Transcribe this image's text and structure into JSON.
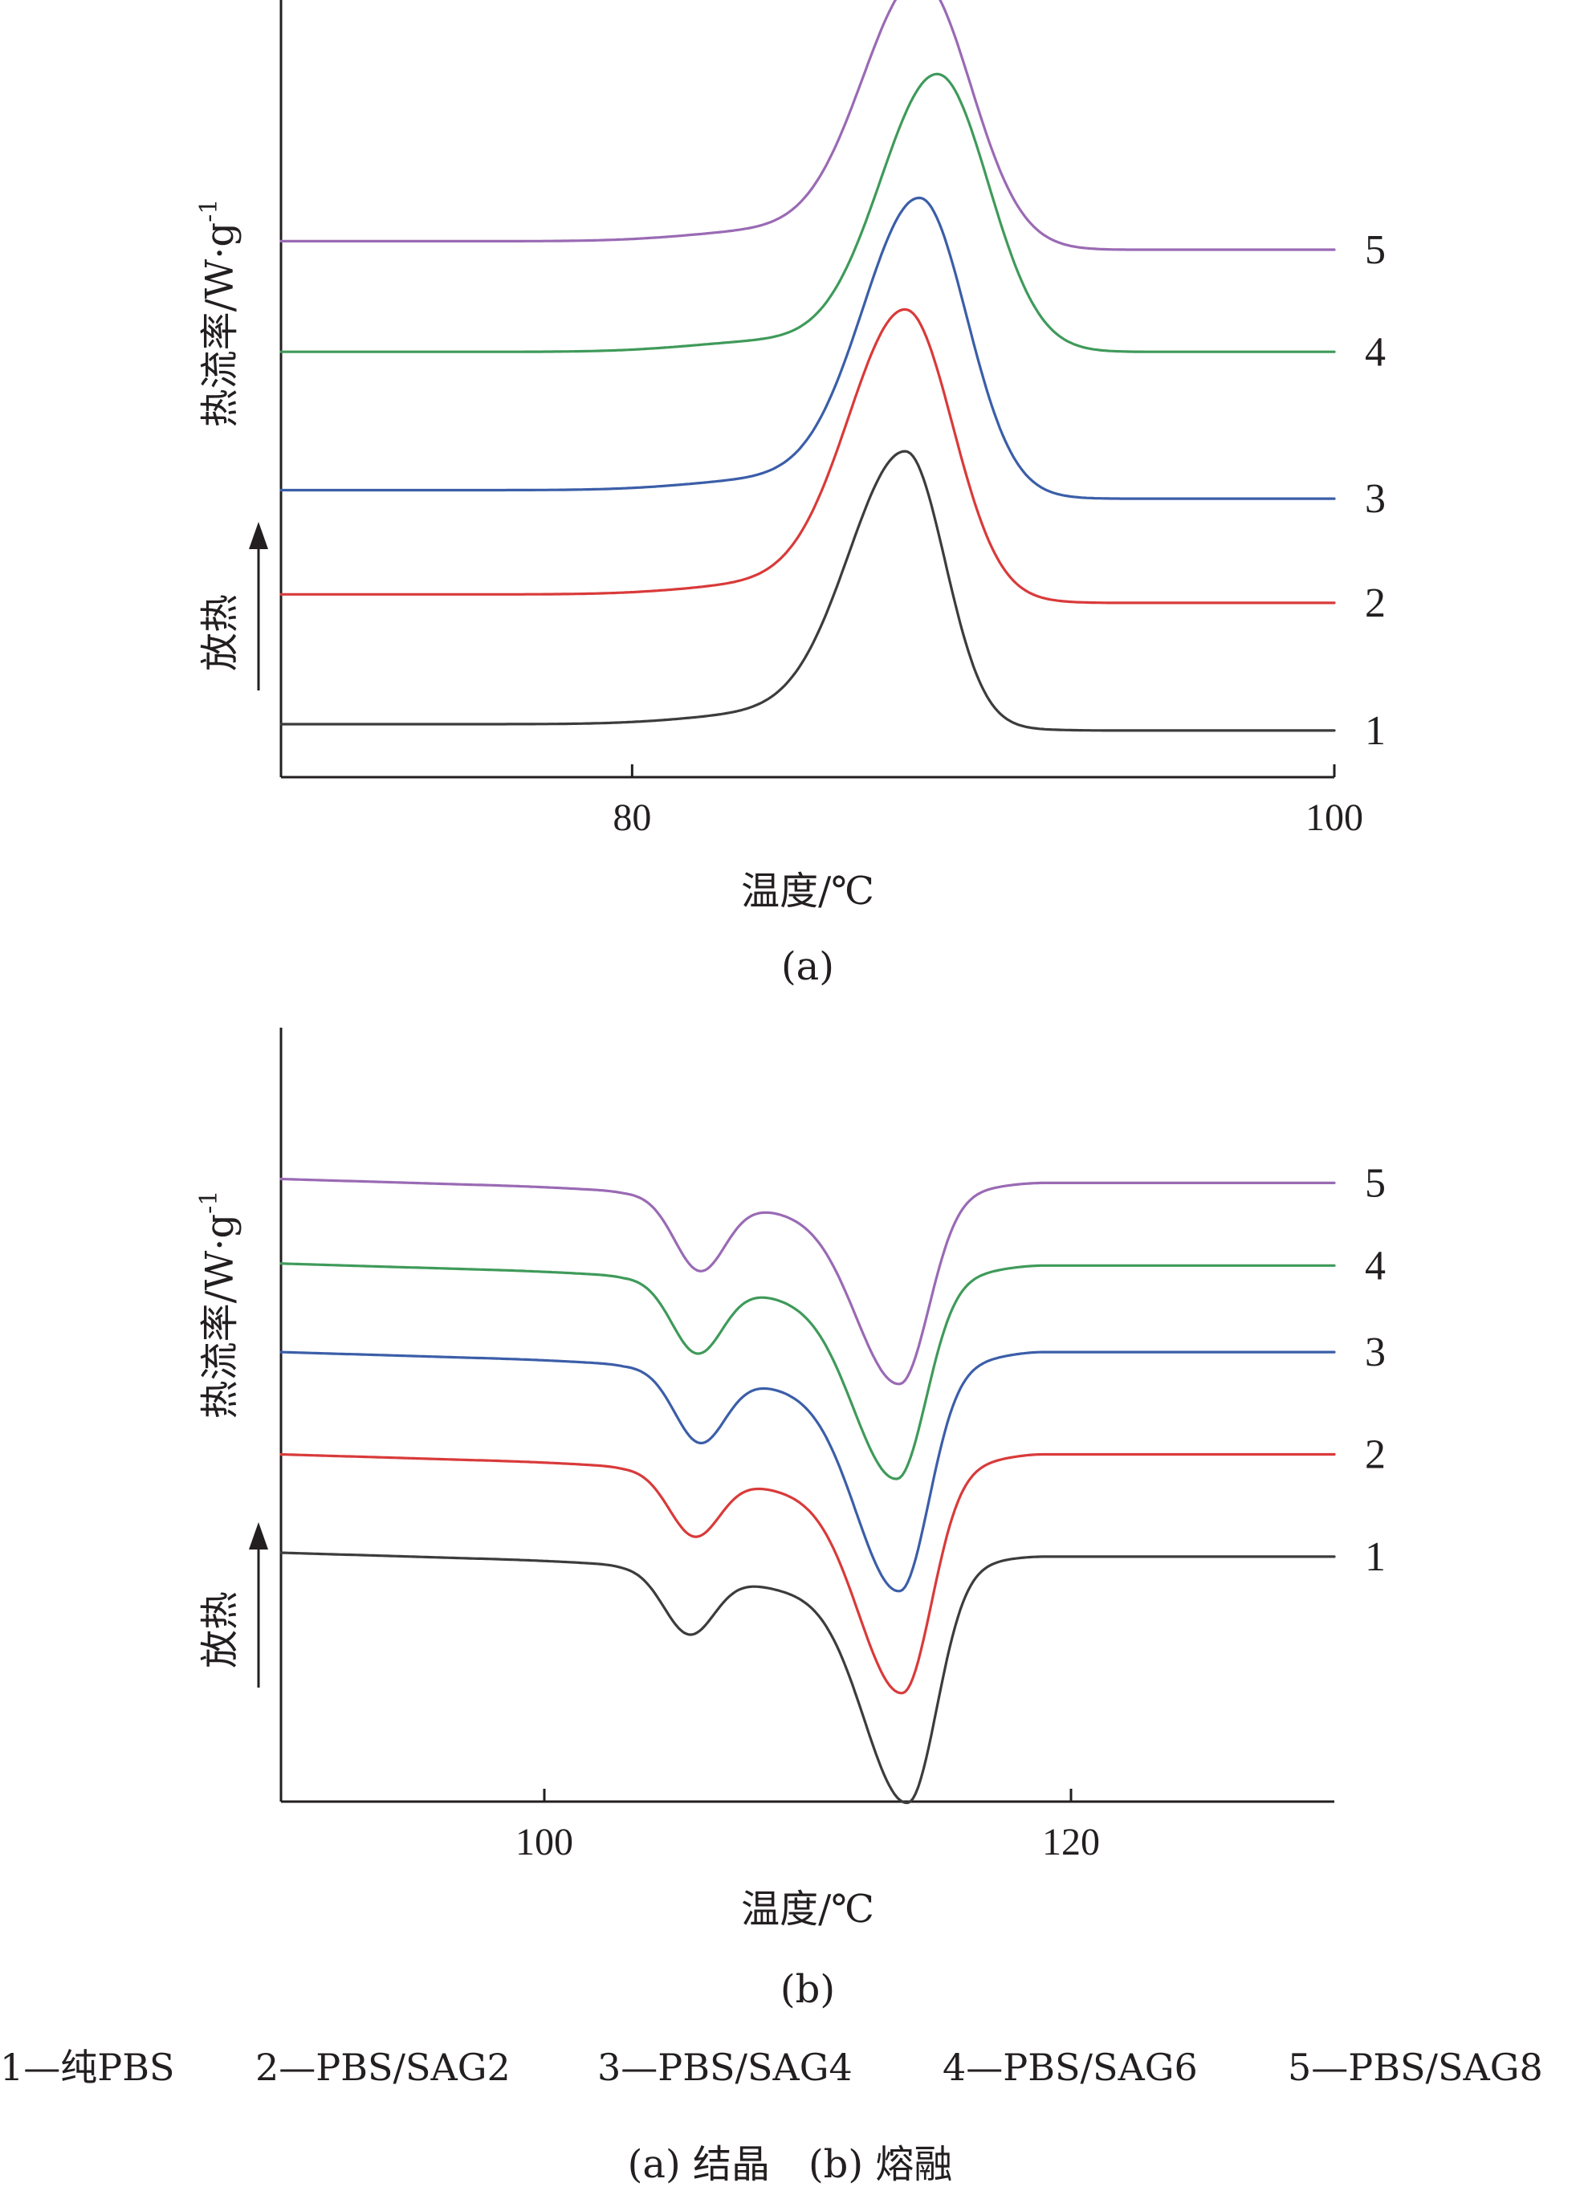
{
  "chart_data": [
    {
      "panel": "a",
      "type": "line",
      "panel_label": "(a)",
      "xlabel": "温度/℃",
      "ylabel": "热流率/W·g⁻¹",
      "ylabel_main": "热流率/W·g",
      "ylabel_sup": "-1",
      "exo_label": "放热",
      "xticks": [
        80,
        100
      ],
      "xlim": [
        70,
        100
      ],
      "series": [
        {
          "label": "1",
          "color": "#3c3c3c",
          "base_left": 0.0,
          "base_right": -0.15,
          "peak_x": 87.8,
          "peak_height": 6.4,
          "width": 1.7,
          "asym_right": 0.72
        },
        {
          "label": "2",
          "color": "#d93a3a",
          "base_left": 3.05,
          "base_right": 2.85,
          "peak_x": 87.8,
          "peak_height": 6.7,
          "width": 1.7,
          "asym_right": 0.9
        },
        {
          "label": "3",
          "color": "#3b5ea8",
          "base_left": 5.5,
          "base_right": 5.3,
          "peak_x": 88.2,
          "peak_height": 6.9,
          "width": 1.7,
          "asym_right": 0.9
        },
        {
          "label": "4",
          "color": "#3f9a5a",
          "base_left": 8.75,
          "base_right": 8.75,
          "peak_x": 88.7,
          "peak_height": 6.5,
          "width": 1.7,
          "asym_right": 1.0
        },
        {
          "label": "5",
          "color": "#9a6ab4",
          "base_left": 11.35,
          "base_right": 11.15,
          "peak_x": 88.2,
          "peak_height": 6.2,
          "width": 1.7,
          "asym_right": 1.0
        }
      ]
    },
    {
      "panel": "b",
      "type": "line",
      "panel_label": "(b)",
      "xlabel": "温度/℃",
      "ylabel": "热流率/W·g⁻¹",
      "ylabel_main": "热流率/W·g",
      "ylabel_sup": "-1",
      "exo_label": "放热",
      "xticks": [
        100,
        120
      ],
      "xlim": [
        90,
        130
      ],
      "series": [
        {
          "label": "1",
          "color": "#3c3c3c",
          "base_left": 0.0,
          "base_right": -0.05,
          "dip1_x": 105.5,
          "dip1_depth": 1.6,
          "dip2_x": 113.8,
          "dip2_depth": 5.9
        },
        {
          "label": "2",
          "color": "#d93a3a",
          "base_left": 2.5,
          "base_right": 2.55,
          "dip1_x": 105.7,
          "dip1_depth": 1.6,
          "dip2_x": 113.6,
          "dip2_depth": 5.6
        },
        {
          "label": "3",
          "color": "#3b5ea8",
          "base_left": 5.1,
          "base_right": 5.15,
          "dip1_x": 105.9,
          "dip1_depth": 1.8,
          "dip2_x": 113.5,
          "dip2_depth": 5.6
        },
        {
          "label": "4",
          "color": "#3f9a5a",
          "base_left": 7.35,
          "base_right": 7.35,
          "dip1_x": 105.8,
          "dip1_depth": 1.8,
          "dip2_x": 113.4,
          "dip2_depth": 5.0
        },
        {
          "label": "5",
          "color": "#9a6ab4",
          "base_left": 9.5,
          "base_right": 9.45,
          "dip1_x": 105.9,
          "dip1_depth": 1.85,
          "dip2_x": 113.5,
          "dip2_depth": 4.75
        }
      ]
    }
  ],
  "legend": [
    {
      "text": "1—纯PBS"
    },
    {
      "text": "2—PBS/SAG2"
    },
    {
      "text": "3—PBS/SAG4"
    },
    {
      "text": "4—PBS/SAG6"
    },
    {
      "text": "5—PBS/SAG8"
    }
  ],
  "caption": "(a) 结晶　(b) 熔融"
}
